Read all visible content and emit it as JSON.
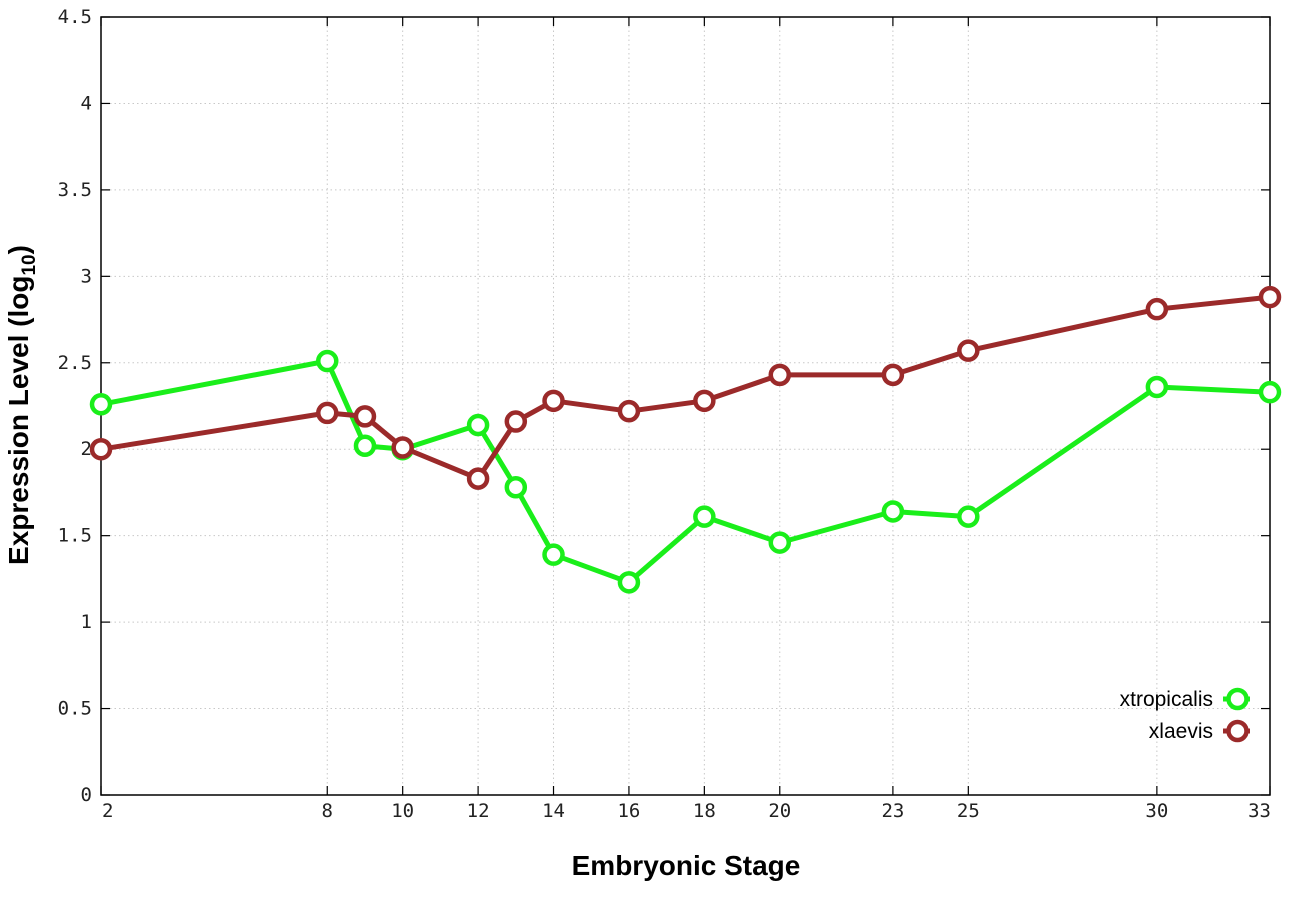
{
  "chart_data": {
    "type": "line",
    "xlabel": "Embryonic Stage",
    "ylabel": "Expression Level (log",
    "ylabel_subscript": "10",
    "ylabel_suffix": ")",
    "x_ticks": [
      2,
      8,
      10,
      12,
      14,
      16,
      18,
      20,
      23,
      25,
      30,
      33
    ],
    "x_tick_labels": [
      "2",
      "8",
      "10",
      "12",
      "14",
      "16",
      "18",
      "20",
      "23",
      "25",
      "30",
      "33"
    ],
    "y_ticks": [
      0,
      0.5,
      1,
      1.5,
      2,
      2.5,
      3,
      3.5,
      4,
      4.5
    ],
    "y_tick_labels": [
      "0",
      "0.5",
      "1",
      "1.5",
      "2",
      "2.5",
      "3",
      "3.5",
      "4",
      "4.5"
    ],
    "xlim": [
      2,
      33
    ],
    "ylim": [
      0,
      4.5
    ],
    "grid": true,
    "legend_position": "bottom-right",
    "series": [
      {
        "name": "xtropicalis",
        "color": "#1aee1a",
        "x": [
          2,
          8,
          9,
          10,
          12,
          13,
          14,
          16,
          18,
          20,
          23,
          25,
          30,
          33
        ],
        "y": [
          2.26,
          2.51,
          2.02,
          2.0,
          2.14,
          1.78,
          1.39,
          1.23,
          1.61,
          1.46,
          1.64,
          1.61,
          2.36,
          2.33
        ]
      },
      {
        "name": "xlaevis",
        "color": "#9b2a2a",
        "x": [
          2,
          8,
          9,
          10,
          12,
          13,
          14,
          16,
          18,
          20,
          23,
          25,
          30,
          33
        ],
        "y": [
          2.0,
          2.21,
          2.19,
          2.01,
          1.83,
          2.16,
          2.28,
          2.22,
          2.28,
          2.43,
          2.43,
          2.57,
          2.81,
          2.88
        ]
      }
    ]
  }
}
